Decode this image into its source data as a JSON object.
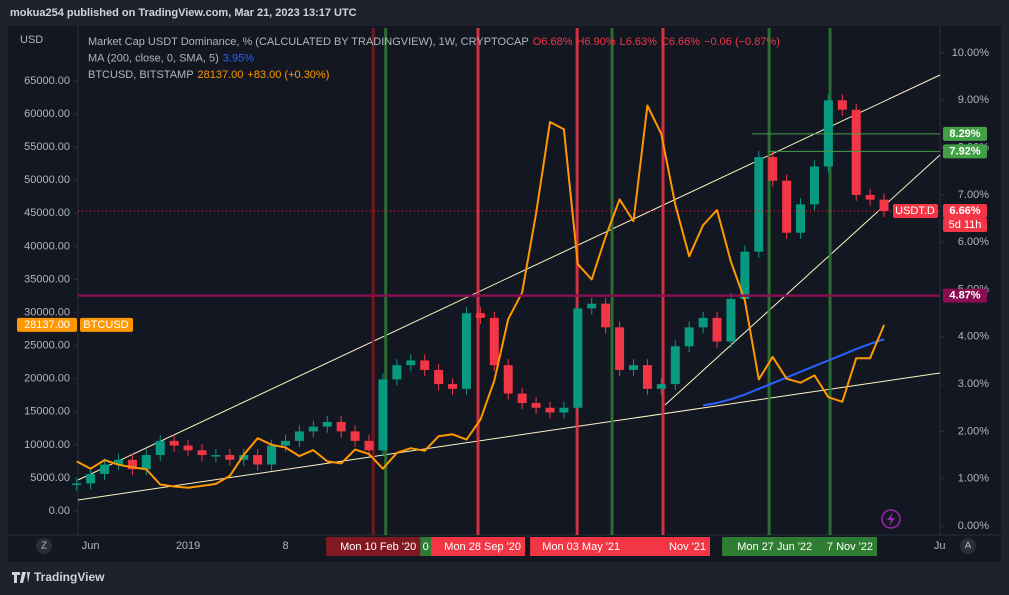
{
  "header": {
    "text": "mokua254 published on TradingView.com, Mar 21, 2023 13:17 UTC"
  },
  "footer": {
    "brand": "TradingView"
  },
  "chart_data": {
    "type": "line",
    "y_unit": "USD",
    "categories": [
      null,
      "Jun",
      null,
      null,
      null,
      null,
      null,
      null,
      "2019",
      null,
      null,
      null,
      null,
      null,
      null,
      "8",
      null,
      null,
      null,
      null,
      null,
      null,
      null,
      null,
      null,
      null,
      null,
      null,
      null,
      null,
      null,
      null,
      null,
      null,
      null,
      null,
      null,
      null,
      null,
      null,
      null,
      null,
      null,
      null,
      null,
      null,
      null,
      null,
      null,
      null,
      null,
      null,
      null,
      null,
      null,
      null,
      null,
      null,
      null,
      null,
      null,
      null,
      "Ju"
    ],
    "series": [
      {
        "name": "Market Cap USDT Dominance, % (CALCULATED BY TRADINGVIEW), 1W, CRYPTOCAP",
        "style": "candle",
        "axis": "y2",
        "up_color": "#089981",
        "down_color": "#f23645",
        "status": [
          "O6.68%",
          "H6.90%",
          "L6.63%",
          "C6.66%",
          "−0.06 (−0.87%)"
        ],
        "values": [
          0.9,
          1.1,
          1.3,
          1.4,
          1.2,
          1.5,
          1.8,
          1.7,
          1.6,
          1.5,
          1.5,
          1.4,
          1.5,
          1.3,
          1.7,
          1.8,
          2.0,
          2.1,
          2.2,
          2.0,
          1.8,
          1.6,
          3.1,
          3.4,
          3.5,
          3.3,
          3.0,
          2.9,
          4.5,
          4.4,
          3.4,
          2.8,
          2.6,
          2.5,
          2.4,
          2.5,
          4.6,
          4.7,
          4.2,
          3.3,
          3.4,
          2.9,
          3.0,
          3.8,
          4.2,
          4.4,
          3.9,
          4.8,
          5.8,
          7.8,
          7.3,
          6.2,
          6.8,
          7.6,
          9.0,
          8.8,
          7.0,
          6.9,
          6.66,
          null,
          null,
          null,
          null
        ]
      },
      {
        "name": "MA (200, close, 0, SMA, 5)",
        "style": "line",
        "axis": "y2",
        "color": "#2962ff",
        "status": [
          "3.95%"
        ],
        "values": [
          null,
          null,
          null,
          null,
          null,
          null,
          null,
          null,
          null,
          null,
          null,
          null,
          null,
          null,
          null,
          null,
          null,
          null,
          null,
          null,
          null,
          null,
          null,
          null,
          null,
          null,
          null,
          null,
          null,
          null,
          null,
          null,
          null,
          null,
          null,
          null,
          null,
          null,
          null,
          null,
          null,
          null,
          null,
          null,
          null,
          2.55,
          2.6,
          2.68,
          2.78,
          2.9,
          3.02,
          3.14,
          3.26,
          3.38,
          3.5,
          3.62,
          3.74,
          3.85,
          3.95,
          null,
          null,
          null,
          null
        ]
      },
      {
        "name": "BTCUSD, BITSTAMP",
        "style": "line",
        "axis": "y",
        "color": "#ff9800",
        "status": [
          "28137.00",
          "+83.00 (+0.30%)"
        ],
        "values": [
          7500,
          6400,
          7700,
          7000,
          6600,
          6300,
          4000,
          3700,
          3500,
          3800,
          4100,
          5300,
          8500,
          11000,
          10000,
          9600,
          8300,
          9200,
          7500,
          7200,
          9300,
          8600,
          6400,
          8800,
          9500,
          9100,
          11300,
          11600,
          10800,
          13800,
          19700,
          29000,
          33000,
          45000,
          58800,
          57700,
          37300,
          35000,
          41500,
          47100,
          43800,
          61300,
          57000,
          46300,
          38500,
          43200,
          45500,
          37700,
          31800,
          19900,
          23300,
          20000,
          19400,
          20500,
          17200,
          16500,
          23100,
          23100,
          28137,
          null,
          null,
          null,
          null
        ]
      }
    ],
    "ylim": [
      0,
      65000
    ],
    "yticks": [
      {
        "value": 0,
        "label": "0.00"
      },
      {
        "value": 5000,
        "label": "5000.00"
      },
      {
        "value": 10000,
        "label": "10000.00"
      },
      {
        "value": 15000,
        "label": "15000.00"
      },
      {
        "value": 20000,
        "label": "20000.00"
      },
      {
        "value": 25000,
        "label": "25000.00"
      },
      {
        "value": 30000,
        "label": "30000.00"
      },
      {
        "value": 35000,
        "label": "35000.00"
      },
      {
        "value": 40000,
        "label": "40000.00"
      },
      {
        "value": 45000,
        "label": "45000.00"
      },
      {
        "value": 50000,
        "label": "50000.00"
      },
      {
        "value": 55000,
        "label": "55000.00"
      },
      {
        "value": 60000,
        "label": "60000.00"
      },
      {
        "value": 65000,
        "label": "65000.00"
      }
    ],
    "y2lim": [
      0,
      10
    ],
    "y2ticks": [
      {
        "value": 0,
        "label": "0.00%"
      },
      {
        "value": 1,
        "label": "1.00%"
      },
      {
        "value": 2,
        "label": "2.00%"
      },
      {
        "value": 3,
        "label": "3.00%"
      },
      {
        "value": 4,
        "label": "4.00%"
      },
      {
        "value": 5,
        "label": "5.00%"
      },
      {
        "value": 6,
        "label": "6.00%"
      },
      {
        "value": 7,
        "label": "7.00%"
      },
      {
        "value": 8,
        "label": "8.00%"
      },
      {
        "value": 9,
        "label": "9.00%"
      },
      {
        "value": 10,
        "label": "10.00%"
      }
    ],
    "grid": false,
    "price_lines": [
      {
        "axis": "y2",
        "value": 8.29,
        "label": "8.29%",
        "color": "#43a047",
        "x_start": 48.5
      },
      {
        "axis": "y2",
        "value": 7.92,
        "label": "7.92%",
        "color": "#43a047",
        "x_start": 49.7
      },
      {
        "axis": "y2",
        "value": 4.87,
        "label": "4.87%",
        "color": "#880e4f",
        "x_start": 0
      },
      {
        "axis": "y2",
        "value": 6.66,
        "label": "6.66%",
        "color": "#f23645",
        "x_start": 0,
        "dotted": true,
        "name": "USDT.D",
        "countdown": "5d 11h"
      },
      {
        "axis": "y",
        "value": 28137,
        "label": "28137.00",
        "color": "#ff9800",
        "name": "BTCUSD"
      }
    ],
    "markers": [
      {
        "x": 22.2,
        "label": "0",
        "color": "#2e7d32"
      },
      {
        "x": 38.46,
        "label": "l '21",
        "color": "#2e7d32"
      },
      {
        "x": 54.12,
        "label": "7 Nov '22",
        "color": "#2e7d32"
      },
      {
        "x": 49.74,
        "label": "Mon 27 Jun '22",
        "color": "#2e7d32"
      },
      {
        "x": 21.3,
        "label": "Mon 10 Feb '20",
        "color": "#801922"
      },
      {
        "x": 28.83,
        "label": "Mon 28 Sep '20",
        "color": "#f23645"
      },
      {
        "x": 42.12,
        "label": "Nov '21",
        "color": "#f23645"
      },
      {
        "x": 35.95,
        "label": "Mon 03 May '21",
        "color": "#f23645"
      }
    ]
  }
}
